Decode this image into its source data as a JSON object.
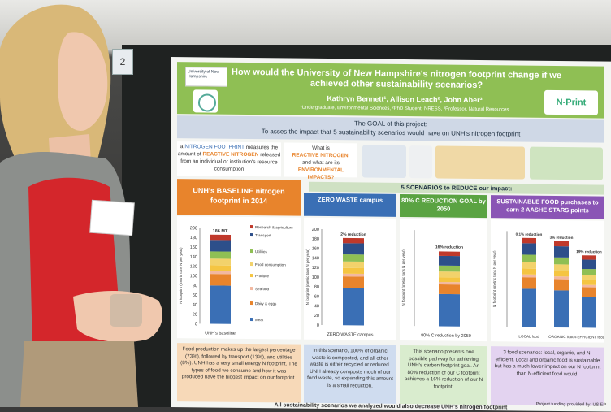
{
  "tag_number": "2",
  "poster": {
    "title": "How would the University of New Hampshire's nitrogen footprint change if we achieved other sustainability scenarios?",
    "authors": "Kathryn Bennett¹, Allison Leach², John Aber³",
    "affiliations": "¹Undergraduate, Environmental Sciences, ²PhD Student, NRESS, ³Professor, Natural Resources",
    "logo_unh": "University of New Hampshire",
    "logo_nprint": "N-Print",
    "goal_title": "The GOAL of this project:",
    "goal_text": "To asses the impact that 5 sustainability scenarios would have on UNH's nitrogen footprint",
    "definition": {
      "prefix": "a ",
      "term": "NITROGEN FOOTPRINT",
      "mid": " measures the amount of ",
      "term2": "REACTIVE NITROGEN",
      "suffix": " released from an individual or institution's resource consumption"
    },
    "what_box": {
      "l1": "What is",
      "l2": "REACTIVE NITROGEN,",
      "l3": "and what are its",
      "l4": "ENVIRONMENTAL IMPACTS?"
    },
    "scenarios_header": "5 SCENARIOS to REDUCE our impact:",
    "columns": [
      {
        "title": "UNH's BASELINE nitrogen footprint in 2014",
        "color": "#e8842c"
      },
      {
        "title": "ZERO WASTE campus",
        "color": "#3a6fb5"
      },
      {
        "title": "80% C REDUCTION GOAL by 2050",
        "color": "#5aa342"
      },
      {
        "title": "SUSTAINABLE FOOD purchases to earn 2 AASHE STARS points",
        "color": "#8a55b5"
      }
    ],
    "descriptions": [
      "Food production makes up the largest percentage (73%), followed by transport (13%), and utilities (8%). UNH has a very small energy N footprint. The types of food we consume and how it was produced have the biggest impact on our footprint.",
      "In this scenario, 100% of organic waste is composted, and all other waste is either recycled or reduced. UNH already composts much of our food waste, so expanding this amount is a small reduction.",
      "This scenario presents one possible pathway for achieving UNH's carbon footprint goal. An 80% reduction of our C footprint achieves a 16% reduction of our N footprint.",
      "3 food scenarios: local, organic, and N-efficient. Local and organic food is sustainable but has a much lower impact on our N footprint than N-efficient food would."
    ],
    "funding": "Project funding provided by: US EP",
    "bottom_text": "All sustainability scenarios we analyzed would also decrease UNH's nitrogen footprint"
  },
  "chart_data": [
    {
      "type": "bar",
      "title": "UNH's BASELINE nitrogen footprint in 2014",
      "ylabel": "N footprint (metric tons N per year)",
      "ylim": [
        0,
        200
      ],
      "yticks": [
        0,
        20,
        40,
        60,
        80,
        100,
        120,
        140,
        160,
        180,
        200
      ],
      "categories": [
        "UNH's baseline"
      ],
      "stacked": true,
      "total_label": "186 MT",
      "series": [
        {
          "name": "Meat",
          "values": [
            80
          ],
          "color": "#3a6fb5"
        },
        {
          "name": "Dairy & eggs",
          "values": [
            24
          ],
          "color": "#e8842c"
        },
        {
          "name": "Seafood",
          "values": [
            6
          ],
          "color": "#f2b8a0"
        },
        {
          "name": "Produce",
          "values": [
            12
          ],
          "color": "#f5c542"
        },
        {
          "name": "Food consumption",
          "values": [
            14
          ],
          "color": "#f2d26b"
        },
        {
          "name": "Utilities",
          "values": [
            15
          ],
          "color": "#8fbf54"
        },
        {
          "name": "Transport",
          "values": [
            24
          ],
          "color": "#2d4f8a"
        },
        {
          "name": "Research & agriculture",
          "values": [
            11
          ],
          "color": "#c0392b"
        }
      ]
    },
    {
      "type": "bar",
      "ylabel": "N footprint (metric tons N per year)",
      "ylim": [
        0,
        200
      ],
      "categories": [
        "ZERO WASTE campus"
      ],
      "stacked": true,
      "annotation": "2% reduction",
      "values": [
        182
      ]
    },
    {
      "type": "bar",
      "ylabel": "N footprint (metric tons N per year)",
      "ylim": [
        0,
        200
      ],
      "categories": [
        "80% C reduction by 2050"
      ],
      "stacked": true,
      "annotation": "16% reduction",
      "values": [
        156
      ]
    },
    {
      "type": "bar",
      "ylabel": "N footprint (metric tons N per year)",
      "ylim": [
        0,
        200
      ],
      "categories": [
        "LOCAL food",
        "ORGANIC food",
        "N-EFFICIENT food"
      ],
      "stacked": true,
      "annotations": [
        "0.1% reduction",
        "3% reduction",
        "19% reduction"
      ],
      "values": [
        186,
        180,
        151
      ]
    }
  ]
}
